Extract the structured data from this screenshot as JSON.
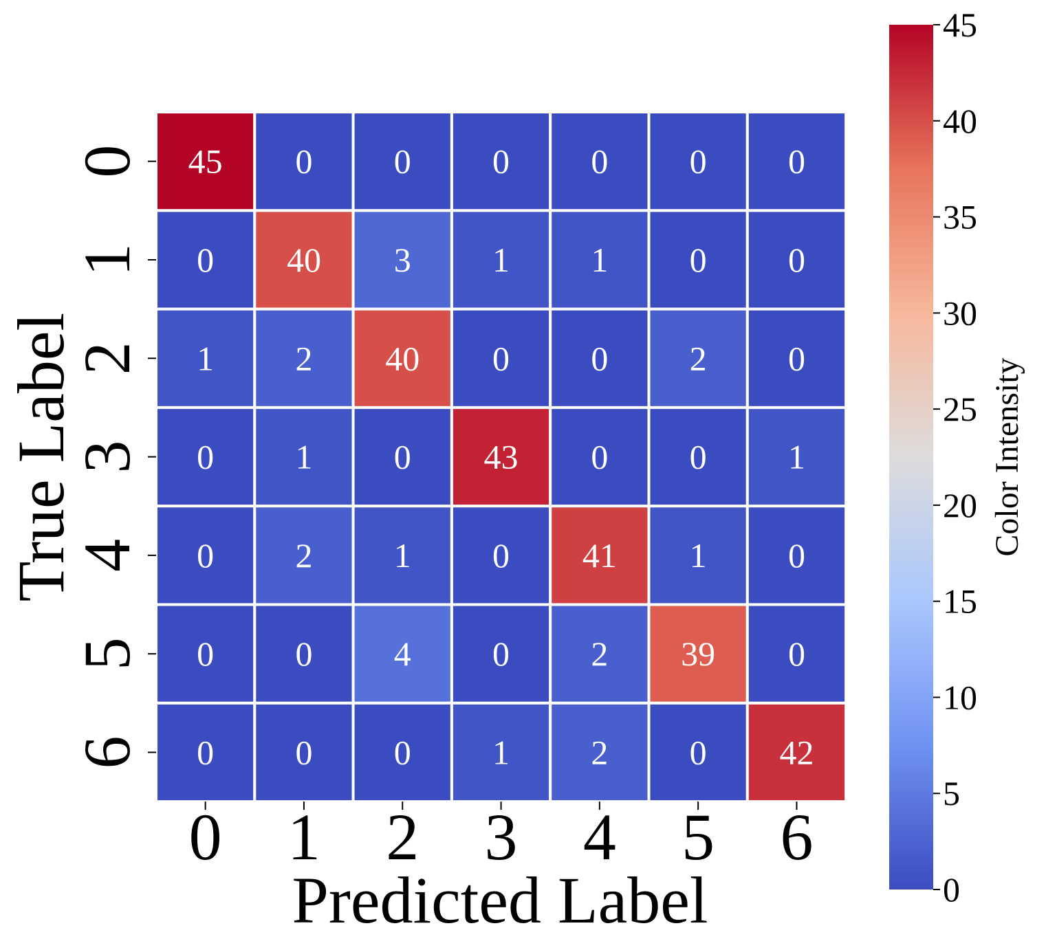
{
  "chart_data": {
    "type": "heatmap",
    "xlabel": "Predicted Label",
    "ylabel": "True Label",
    "x_categories": [
      "0",
      "1",
      "2",
      "3",
      "4",
      "5",
      "6"
    ],
    "y_categories": [
      "0",
      "1",
      "2",
      "3",
      "4",
      "5",
      "6"
    ],
    "values": [
      [
        45,
        0,
        0,
        0,
        0,
        0,
        0
      ],
      [
        0,
        40,
        3,
        1,
        1,
        0,
        0
      ],
      [
        1,
        2,
        40,
        0,
        0,
        2,
        0
      ],
      [
        0,
        1,
        0,
        43,
        0,
        0,
        1
      ],
      [
        0,
        2,
        1,
        0,
        41,
        1,
        0
      ],
      [
        0,
        0,
        4,
        0,
        2,
        39,
        0
      ],
      [
        0,
        0,
        0,
        1,
        2,
        0,
        42
      ]
    ],
    "colorbar": {
      "label": "Color Intensity",
      "min": 0,
      "max": 45,
      "ticks": [
        "0",
        "5",
        "10",
        "15",
        "20",
        "25",
        "30",
        "35",
        "40",
        "45"
      ],
      "colormap": "coolwarm",
      "colors": [
        "#3b4cc0",
        "#6f92f3",
        "#aac7fd",
        "#dddcdc",
        "#f7b89c",
        "#e7745b",
        "#b40426"
      ]
    },
    "cell_border_color": "#ffffff",
    "cell_text_color": "#ffffff"
  }
}
